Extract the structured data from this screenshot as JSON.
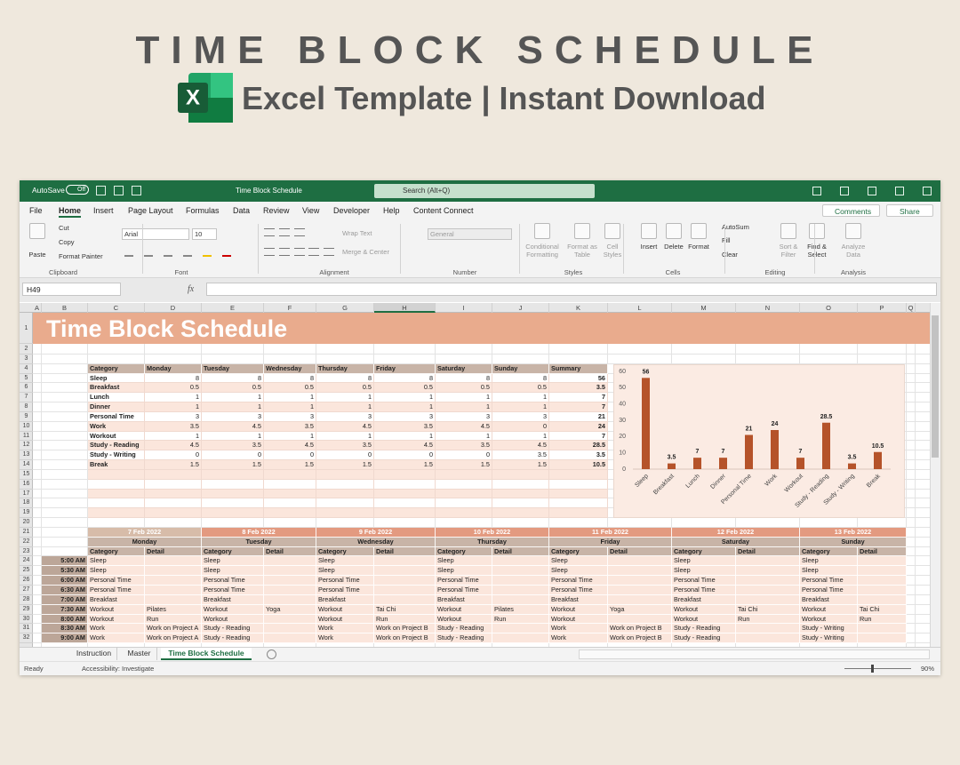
{
  "header": {
    "title": "TIME BLOCK SCHEDULE",
    "subtitle": "Excel Template | Instant Download",
    "icon_letter": "X"
  },
  "window": {
    "autosave": "AutoSave",
    "autosave_state": "Off",
    "file_name": "Time Block Schedule",
    "search": "Search (Alt+Q)"
  },
  "menu": {
    "tabs": [
      "File",
      "Home",
      "Insert",
      "Page Layout",
      "Formulas",
      "Data",
      "Review",
      "View",
      "Developer",
      "Help",
      "Content Connect"
    ],
    "active": 1,
    "comments": "Comments",
    "share": "Share"
  },
  "ribbon": {
    "items": [
      "Paste",
      "Cut",
      "Copy",
      "Format Painter",
      "Arial",
      "10",
      "Wrap Text",
      "Merge & Center",
      "General",
      "Conditional Formatting",
      "Format as Table",
      "Cell Styles",
      "Insert",
      "Delete",
      "Format",
      "AutoSum",
      "Fill",
      "Clear",
      "Sort & Filter",
      "Find & Select",
      "Analyze Data"
    ],
    "groups": [
      "Clipboard",
      "Font",
      "Alignment",
      "Number",
      "Styles",
      "Cells",
      "Editing",
      "Analysis"
    ]
  },
  "formula": {
    "name_box": "H49",
    "fx": "fx"
  },
  "sheet": {
    "columns": [
      "A",
      "B",
      "C",
      "D",
      "E",
      "F",
      "G",
      "H",
      "I",
      "J",
      "K",
      "L",
      "M",
      "N",
      "O",
      "P",
      "Q"
    ],
    "row_numbers": [
      1,
      2,
      3,
      4,
      5,
      6,
      7,
      8,
      9,
      10,
      11,
      12,
      13,
      14,
      15,
      16,
      17,
      18,
      19,
      20,
      21,
      22,
      23,
      24,
      25,
      26,
      27,
      28,
      29,
      30,
      31,
      32
    ],
    "title": "Time Block Schedule"
  },
  "summary": {
    "columns": [
      "Category",
      "Monday",
      "Tuesday",
      "Wednesday",
      "Thursday",
      "Friday",
      "Saturday",
      "Sunday",
      "Summary"
    ],
    "rows": [
      {
        "category": "Sleep",
        "hours": [
          8,
          8,
          8,
          8,
          8,
          8,
          8
        ],
        "total": 56
      },
      {
        "category": "Breakfast",
        "hours": [
          0.5,
          0.5,
          0.5,
          0.5,
          0.5,
          0.5,
          0.5
        ],
        "total": 3.5
      },
      {
        "category": "Lunch",
        "hours": [
          1,
          1,
          1,
          1,
          1,
          1,
          1
        ],
        "total": 7
      },
      {
        "category": "Dinner",
        "hours": [
          1,
          1,
          1,
          1,
          1,
          1,
          1
        ],
        "total": 7
      },
      {
        "category": "Personal Time",
        "hours": [
          3,
          3,
          3,
          3,
          3,
          3,
          3
        ],
        "total": 21
      },
      {
        "category": "Work",
        "hours": [
          3.5,
          4.5,
          3.5,
          4.5,
          3.5,
          4.5,
          0
        ],
        "total": 24
      },
      {
        "category": "Workout",
        "hours": [
          1,
          1,
          1,
          1,
          1,
          1,
          1
        ],
        "total": 7
      },
      {
        "category": "Study - Reading",
        "hours": [
          4.5,
          3.5,
          4.5,
          3.5,
          4.5,
          3.5,
          4.5
        ],
        "total": 28.5
      },
      {
        "category": "Study - Writing",
        "hours": [
          0,
          0,
          0,
          0,
          0,
          0,
          3.5
        ],
        "total": 3.5
      },
      {
        "category": "Break",
        "hours": [
          1.5,
          1.5,
          1.5,
          1.5,
          1.5,
          1.5,
          1.5
        ],
        "total": 10.5
      }
    ]
  },
  "chart_data": {
    "type": "bar",
    "categories": [
      "Sleep",
      "Breakfast",
      "Lunch",
      "Dinner",
      "Personal Time",
      "Work",
      "Workout",
      "Study - Reading",
      "Study - Writing",
      "Break"
    ],
    "values": [
      56,
      3.5,
      7,
      7,
      21,
      24,
      7,
      28.5,
      3.5,
      10.5
    ],
    "color": "#b5532a",
    "ylim": [
      0,
      60
    ],
    "yticks": [
      0,
      10,
      20,
      30,
      40,
      50,
      60
    ],
    "grid": false
  },
  "schedule": {
    "days": [
      {
        "date": "7 Feb 2022",
        "day": "Monday"
      },
      {
        "date": "8 Feb 2022",
        "day": "Tuesday"
      },
      {
        "date": "9 Feb 2022",
        "day": "Wednesday"
      },
      {
        "date": "10 Feb 2022",
        "day": "Thursday"
      },
      {
        "date": "11 Feb 2022",
        "day": "Friday"
      },
      {
        "date": "12 Feb 2022",
        "day": "Saturday"
      },
      {
        "date": "13 Feb 2022",
        "day": "Sunday"
      }
    ],
    "subheaders": [
      "Category",
      "Detail"
    ],
    "rows": [
      {
        "time": "5:00 AM",
        "cells": [
          {
            "category": "Sleep"
          },
          {
            "category": "Sleep"
          },
          {
            "category": "Sleep"
          },
          {
            "category": "Sleep"
          },
          {
            "category": "Sleep"
          },
          {
            "category": "Sleep"
          },
          {
            "category": "Sleep"
          }
        ]
      },
      {
        "time": "5:30 AM",
        "cells": [
          {
            "category": "Sleep"
          },
          {
            "category": "Sleep"
          },
          {
            "category": "Sleep"
          },
          {
            "category": "Sleep"
          },
          {
            "category": "Sleep"
          },
          {
            "category": "Sleep"
          },
          {
            "category": "Sleep"
          }
        ]
      },
      {
        "time": "6:00 AM",
        "cells": [
          {
            "category": "Personal Time"
          },
          {
            "category": "Personal Time"
          },
          {
            "category": "Personal Time"
          },
          {
            "category": "Personal Time"
          },
          {
            "category": "Personal Time"
          },
          {
            "category": "Personal Time"
          },
          {
            "category": "Personal Time"
          }
        ]
      },
      {
        "time": "6:30 AM",
        "cells": [
          {
            "category": "Personal Time"
          },
          {
            "category": "Personal Time"
          },
          {
            "category": "Personal Time"
          },
          {
            "category": "Personal Time"
          },
          {
            "category": "Personal Time"
          },
          {
            "category": "Personal Time"
          },
          {
            "category": "Personal Time"
          }
        ]
      },
      {
        "time": "7:00 AM",
        "cells": [
          {
            "category": "Breakfast"
          },
          {
            "category": "Breakfast"
          },
          {
            "category": "Breakfast"
          },
          {
            "category": "Breakfast"
          },
          {
            "category": "Breakfast"
          },
          {
            "category": "Breakfast"
          },
          {
            "category": "Breakfast"
          }
        ]
      },
      {
        "time": "7:30 AM",
        "cells": [
          {
            "category": "Workout",
            "detail": "Pilates"
          },
          {
            "category": "Workout",
            "detail": "Yoga"
          },
          {
            "category": "Workout",
            "detail": "Tai Chi"
          },
          {
            "category": "Workout",
            "detail": "Pilates"
          },
          {
            "category": "Workout",
            "detail": "Yoga"
          },
          {
            "category": "Workout",
            "detail": "Tai Chi"
          },
          {
            "category": "Workout",
            "detail": "Tai Chi"
          }
        ]
      },
      {
        "time": "8:00 AM",
        "cells": [
          {
            "category": "Workout",
            "detail": "Run"
          },
          {
            "category": "Workout"
          },
          {
            "category": "Workout",
            "detail": "Run"
          },
          {
            "category": "Workout",
            "detail": "Run"
          },
          {
            "category": "Workout"
          },
          {
            "category": "Workout",
            "detail": "Run"
          },
          {
            "category": "Workout",
            "detail": "Run"
          }
        ]
      },
      {
        "time": "8:30 AM",
        "cells": [
          {
            "category": "Work",
            "detail": "Work on Project A"
          },
          {
            "category": "Study - Reading"
          },
          {
            "category": "Work",
            "detail": "Work on Project B"
          },
          {
            "category": "Study - Reading"
          },
          {
            "category": "Work",
            "detail": "Work on Project B"
          },
          {
            "category": "Study - Reading"
          },
          {
            "category": "Study - Writing"
          }
        ]
      },
      {
        "time": "9:00 AM",
        "cells": [
          {
            "category": "Work",
            "detail": "Work on Project A"
          },
          {
            "category": "Study - Reading"
          },
          {
            "category": "Work",
            "detail": "Work on Project B"
          },
          {
            "category": "Study - Reading"
          },
          {
            "category": "Work",
            "detail": "Work on Project B"
          },
          {
            "category": "Study - Reading"
          },
          {
            "category": "Study - Writing"
          }
        ]
      }
    ]
  },
  "tabs": {
    "names": [
      "Instruction",
      "Master",
      "Time Block Schedule"
    ],
    "active": 2
  },
  "status": {
    "ready": "Ready",
    "accessibility": "Accessibility: Investigate",
    "zoom": "90%"
  }
}
